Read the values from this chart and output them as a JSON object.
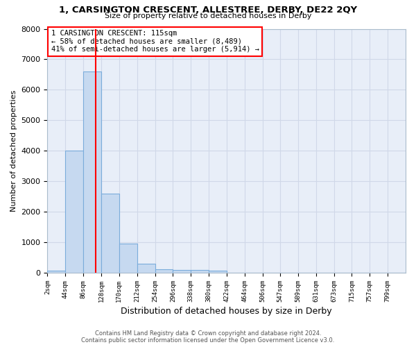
{
  "title": "1, CARSINGTON CRESCENT, ALLESTREE, DERBY, DE22 2QY",
  "subtitle": "Size of property relative to detached houses in Derby",
  "xlabel": "Distribution of detached houses by size in Derby",
  "ylabel": "Number of detached properties",
  "footer_line1": "Contains HM Land Registry data © Crown copyright and database right 2024.",
  "footer_line2": "Contains public sector information licensed under the Open Government Licence v3.0.",
  "bar_edges": [
    2,
    44,
    86,
    128,
    170,
    212,
    254,
    296,
    338,
    380,
    422,
    464,
    506,
    547,
    589,
    631,
    673,
    715,
    757,
    799,
    841
  ],
  "bar_heights": [
    75,
    4000,
    6600,
    2600,
    950,
    300,
    120,
    90,
    90,
    80,
    0,
    0,
    0,
    0,
    0,
    0,
    0,
    0,
    0,
    0
  ],
  "bar_color": "#c6d9f0",
  "bar_edge_color": "#7aacdb",
  "property_line_x": 115,
  "property_line_color": "red",
  "ylim": [
    0,
    8000
  ],
  "yticks": [
    0,
    1000,
    2000,
    3000,
    4000,
    5000,
    6000,
    7000,
    8000
  ],
  "annotation_text": "1 CARSINGTON CRESCENT: 115sqm\n← 58% of detached houses are smaller (8,489)\n41% of semi-detached houses are larger (5,914) →",
  "annotation_box_color": "red",
  "grid_color": "#d0d8e8",
  "bg_color": "#ffffff"
}
